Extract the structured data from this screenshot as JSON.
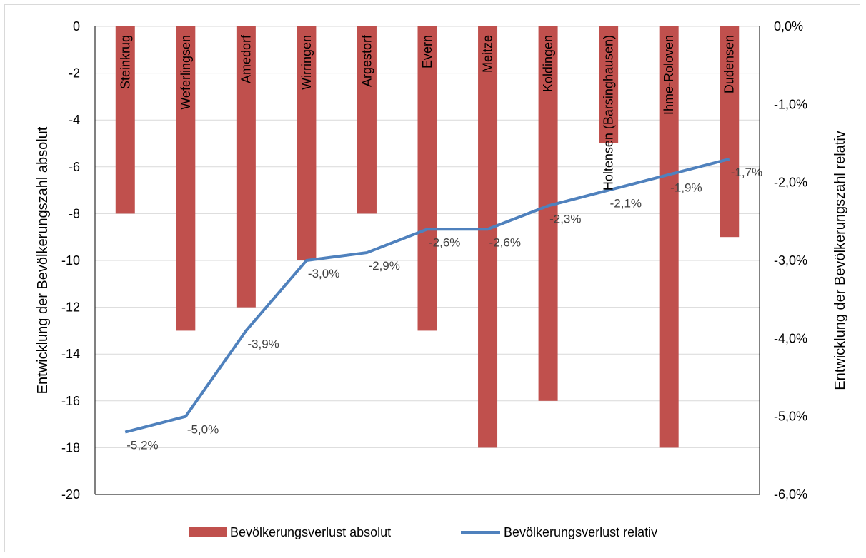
{
  "chart_data": {
    "type": "bar+line",
    "categories": [
      "Steinkrug",
      "Weferlingsen",
      "Amedorf",
      "Wirringen",
      "Argestorf",
      "Evern",
      "Meitze",
      "Koldingen",
      "Holtensen (Barsinghausen)",
      "Ihme-Roloven",
      "Dudensen"
    ],
    "series": [
      {
        "name": "Bevölkerungsverlust absolut",
        "type": "bar",
        "axis": "left",
        "color": "#c0504d",
        "values": [
          -8,
          -13,
          -12,
          -10,
          -8,
          -13,
          -18,
          -16,
          -5,
          -18,
          -9
        ]
      },
      {
        "name": "Bevölkerungsverlust relativ",
        "type": "line",
        "axis": "right",
        "color": "#4f81bd",
        "values": [
          -5.2,
          -5.0,
          -3.9,
          -3.0,
          -2.9,
          -2.6,
          -2.6,
          -2.3,
          -2.1,
          -1.9,
          -1.7
        ],
        "labels": [
          "-5,2%",
          "-5,0%",
          "-3,9%",
          "-3,0%",
          "-2,9%",
          "-2,6%",
          "-2,6%",
          "-2,3%",
          "-2,1%",
          "-1,9%",
          "-1,7%"
        ]
      }
    ],
    "ylabel_left": "Entwicklung der Bevölkerungszahl absolut",
    "ylabel_right": "Entwicklung der Bevölkerungszahl relativ",
    "ylim_left": [
      -20,
      0
    ],
    "ylim_right": [
      -6.0,
      0.0
    ],
    "left_ticks": [
      "0",
      "-2",
      "-4",
      "-6",
      "-8",
      "-10",
      "-12",
      "-14",
      "-16",
      "-18",
      "-20"
    ],
    "right_ticks": [
      "0,0%",
      "-1,0%",
      "-2,0%",
      "-3,0%",
      "-4,0%",
      "-5,0%",
      "-6,0%"
    ],
    "grid": true,
    "legend_position": "bottom"
  }
}
